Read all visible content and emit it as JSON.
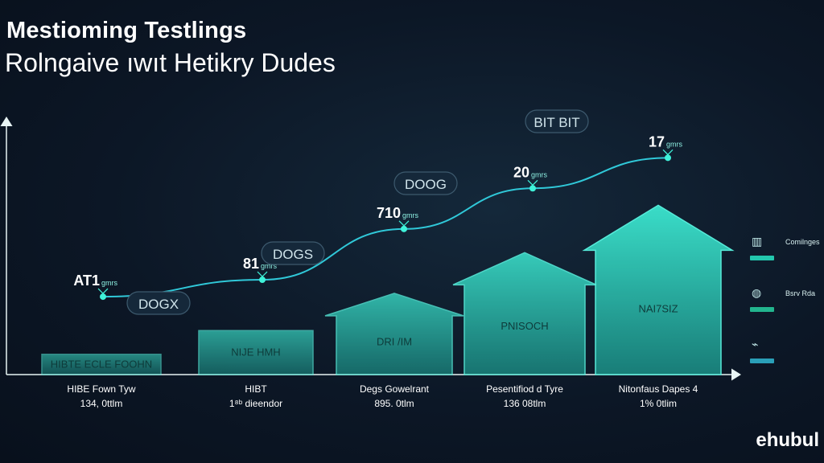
{
  "title": "Mestioming Testlings",
  "subtitle": "Rolngaive ıwıt Hetikry Dudes",
  "brand": "ehubul",
  "colors": {
    "accent": "#2ee6cf",
    "bar_fill": "#27b7a8",
    "line": "#30c8d8",
    "background": "#0c1726"
  },
  "legend": [
    {
      "icon": "chart-icon",
      "glyph": "▥",
      "label": "Comilnges",
      "color": "#23c7ad"
    },
    {
      "icon": "apple-icon",
      "glyph": "◍",
      "label": "Bsrv Rda",
      "color": "#22b58e"
    },
    {
      "icon": "leaf-icon",
      "glyph": "⌁",
      "label": "",
      "color": "#2a9fb8"
    }
  ],
  "chart_data": {
    "type": "bar",
    "categories": [
      "HIBE Fown Tyw",
      "HIBT",
      "Degs Gowelrant",
      "Pesentifiod d Tyre",
      "Nitonfaus Dapes 4"
    ],
    "category_sublabels": [
      "134, 0ttlm",
      "1⁸ᵇ dieendor",
      "895. 0tlm",
      "136 08tlm",
      "1% 0tlim"
    ],
    "bar_labels": [
      "HIBTE ECLE FOOHN",
      "NIJE HMH",
      "DRI /IM",
      "PNISOCH",
      "NAI7SIZ"
    ],
    "values": [
      1.2,
      2.6,
      4.8,
      7.2,
      10.0
    ],
    "line_values": [
      4.6,
      5.6,
      8.6,
      11.0,
      12.8
    ],
    "line_labels": [
      "AT1",
      "81",
      "710",
      "20",
      "17"
    ],
    "line_label_suffix": "gmrs",
    "badges": [
      "DOGX",
      "DOGS",
      "DOOG",
      "BIT BIT"
    ],
    "ylim": [
      0,
      15
    ],
    "grid": false,
    "legend_position": "right"
  }
}
